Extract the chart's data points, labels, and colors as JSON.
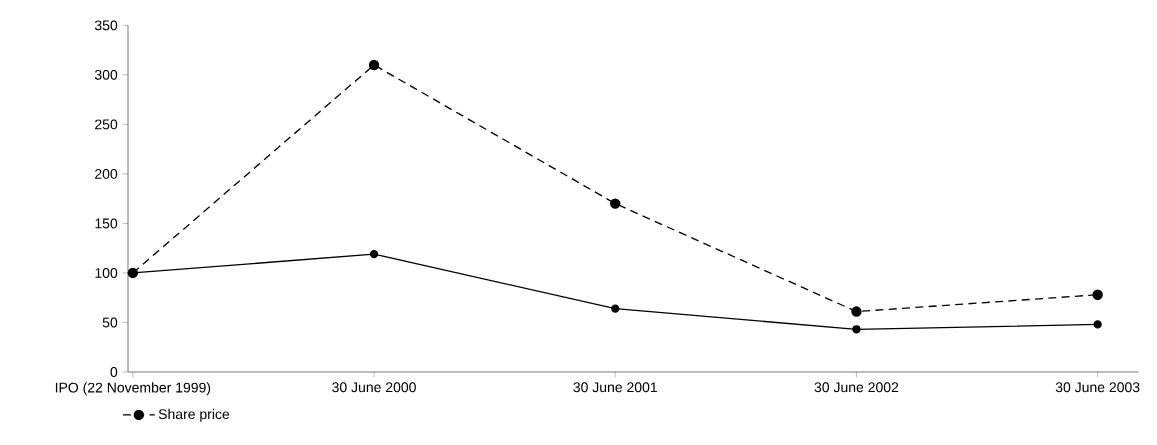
{
  "chart_data": {
    "type": "line",
    "categories": [
      "IPO (22 November 1999)",
      "30 June 2000",
      "30 June 2001",
      "30 June 2002",
      "30 June 2003"
    ],
    "series": [
      {
        "name": "Share price",
        "color": "#000000",
        "line_style": "dashed",
        "values": [
          100,
          310,
          170,
          61,
          78
        ]
      },
      {
        "color": "#000000",
        "line_style": "solid",
        "values": [
          100,
          119,
          64,
          43,
          48
        ]
      }
    ],
    "ylim": [
      0,
      350
    ],
    "yticks": [
      0,
      50,
      100,
      150,
      200,
      250,
      300,
      350
    ],
    "marker": "circle",
    "grid": false,
    "legend": "bottom left"
  }
}
